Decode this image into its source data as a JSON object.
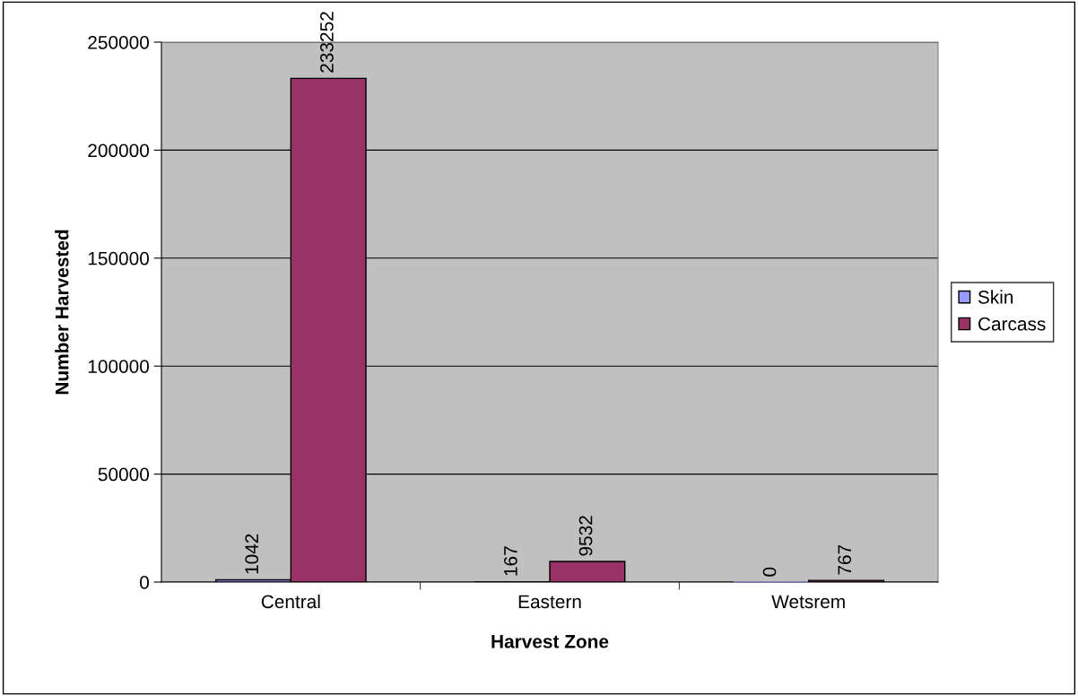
{
  "chart_data": {
    "type": "bar",
    "xlabel": "Harvest Zone",
    "ylabel": "Number Harvested",
    "categories": [
      "Central",
      "Eastern",
      "Wetsrem"
    ],
    "series": [
      {
        "name": "Skin",
        "color": "#9999ff",
        "values": [
          1042,
          167,
          0
        ]
      },
      {
        "name": "Carcass",
        "color": "#993366",
        "values": [
          233252,
          9532,
          767
        ]
      }
    ],
    "ylim": [
      0,
      250000
    ],
    "yticks": [
      0,
      50000,
      100000,
      150000,
      200000,
      250000
    ],
    "grid": "y",
    "legend": "right",
    "data_labels": true
  }
}
